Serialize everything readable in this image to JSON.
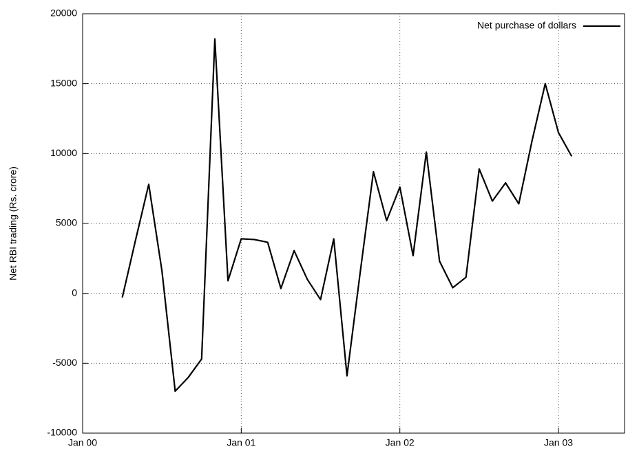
{
  "chart_data": {
    "type": "line",
    "y_label": "Net RBI trading (Rs. crore)",
    "x": [
      "2000-04",
      "2000-05",
      "2000-06",
      "2000-07",
      "2000-08",
      "2000-09",
      "2000-10",
      "2000-11",
      "2000-12",
      "2001-01",
      "2001-02",
      "2001-03",
      "2001-04",
      "2001-05",
      "2001-06",
      "2001-07",
      "2001-08",
      "2001-09",
      "2001-10",
      "2001-11",
      "2001-12",
      "2002-01",
      "2002-02",
      "2002-03",
      "2002-04",
      "2002-05",
      "2002-06",
      "2002-07",
      "2002-08",
      "2002-09",
      "2002-10",
      "2002-11",
      "2002-12",
      "2003-01",
      "2003-02"
    ],
    "series": [
      {
        "name": "Net purchase of dollars",
        "color": "#000000",
        "values": [
          -300,
          3800,
          7800,
          1600,
          -7000,
          -6000,
          -4700,
          18200,
          900,
          3900,
          3850,
          3650,
          350,
          3050,
          1000,
          -450,
          3900,
          -5900,
          1500,
          8700,
          5200,
          7600,
          2700,
          10100,
          2300,
          400,
          1150,
          8900,
          6600,
          7900,
          6400,
          10900,
          15000,
          11500,
          9800
        ]
      }
    ],
    "xlim": [
      "2000-01",
      "2003-06"
    ],
    "xticks": [
      {
        "value": "2000-01",
        "label": "Jan 00"
      },
      {
        "value": "2001-01",
        "label": "Jan 01"
      },
      {
        "value": "2002-01",
        "label": "Jan 02"
      },
      {
        "value": "2003-01",
        "label": "Jan 03"
      }
    ],
    "ylim": [
      -10000,
      20000
    ],
    "yticks": [
      -10000,
      -5000,
      0,
      5000,
      10000,
      15000,
      20000
    ],
    "grid": true,
    "legend": "upper right"
  }
}
